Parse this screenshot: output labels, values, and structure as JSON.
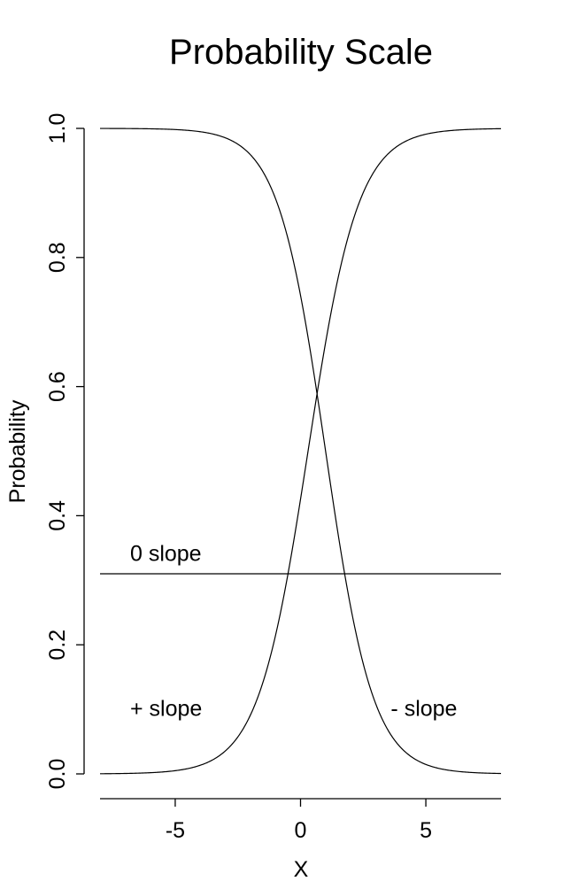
{
  "chart_data": {
    "type": "line",
    "title": "Probability Scale",
    "xlabel": "X",
    "ylabel": "Probability",
    "xlim": [
      -8,
      8
    ],
    "ylim": [
      0,
      1
    ],
    "x_ticks": [
      -5,
      0,
      5
    ],
    "x_tick_labels": [
      "-5",
      "0",
      "5"
    ],
    "y_ticks": [
      0,
      0.2,
      0.4,
      0.6,
      0.8,
      1.0
    ],
    "y_tick_labels": [
      "0.0",
      "0.2",
      "0.4",
      "0.6",
      "0.8",
      "1.0"
    ],
    "grid": false,
    "legend": "none",
    "series": [
      {
        "id": "positive",
        "kind": "logistic",
        "location": 0.3,
        "scale": 1.0
      },
      {
        "id": "negative",
        "kind": "logistic-decreasing",
        "location": 1.0,
        "scale": 0.95
      },
      {
        "id": "zero",
        "kind": "constant",
        "value": 0.31
      }
    ],
    "annotations": [
      {
        "id": "zero-slope",
        "text": "0 slope",
        "x": -6.8,
        "y": 0.33
      },
      {
        "id": "pos-slope",
        "text": "+ slope",
        "x": -6.8,
        "y": 0.09
      },
      {
        "id": "neg-slope",
        "text": "- slope",
        "x": 3.6,
        "y": 0.09
      }
    ]
  }
}
